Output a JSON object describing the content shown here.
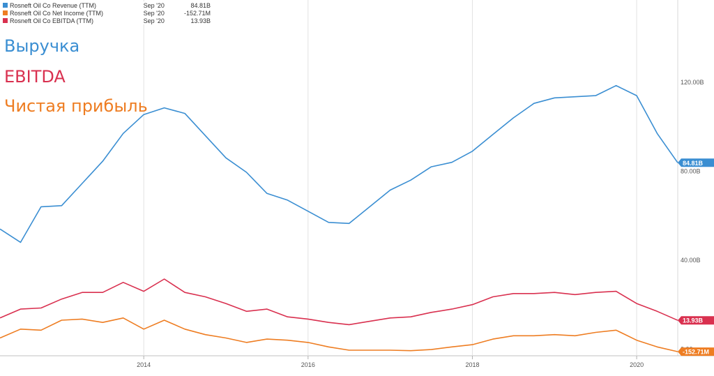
{
  "chart_data": {
    "type": "line",
    "x": [
      "2012-06",
      "2012-09",
      "2012-12",
      "2013-03",
      "2013-06",
      "2013-09",
      "2013-12",
      "2014-03",
      "2014-06",
      "2014-09",
      "2014-12",
      "2015-03",
      "2015-06",
      "2015-09",
      "2015-12",
      "2016-03",
      "2016-06",
      "2016-09",
      "2016-12",
      "2017-03",
      "2017-06",
      "2017-09",
      "2017-12",
      "2018-03",
      "2018-06",
      "2018-09",
      "2018-12",
      "2019-03",
      "2019-06",
      "2019-09",
      "2019-12",
      "2020-03",
      "2020-06",
      "2020-09"
    ],
    "series": [
      {
        "name": "Rosneft Oil Co Revenue (TTM)",
        "color": "#3a8ed2",
        "last_date": "Sep '20",
        "last_value_label": "84.81B",
        "values": [
          55.0,
          49.0,
          65.0,
          65.5,
          75.5,
          85.5,
          98.0,
          106.5,
          109.5,
          107.0,
          97.0,
          87.0,
          80.5,
          71.0,
          68.0,
          63.0,
          58.0,
          57.5,
          65.0,
          72.5,
          77.0,
          83.0,
          85.0,
          90.0,
          97.5,
          105.0,
          111.5,
          114.0,
          114.5,
          115.0,
          119.5,
          115.0,
          98.0,
          84.81
        ]
      },
      {
        "name": "Rosneft Oil Co Net Income (TTM)",
        "color": "#ee7d22",
        "last_date": "Sep '20",
        "last_value_label": "-152.71M",
        "values": [
          6.0,
          10.0,
          9.5,
          14.0,
          14.5,
          13.0,
          15.0,
          10.0,
          14.0,
          10.0,
          7.5,
          6.0,
          4.0,
          5.5,
          5.0,
          4.0,
          2.0,
          0.5,
          0.5,
          0.5,
          0.3,
          0.8,
          2.0,
          3.0,
          5.5,
          7.0,
          7.0,
          7.5,
          7.0,
          8.5,
          9.5,
          5.0,
          2.0,
          -0.15271
        ]
      },
      {
        "name": "Rosneft Oil Co EBITDA (TTM)",
        "color": "#d9304f",
        "last_date": "Sep '20",
        "last_value_label": "13.93B",
        "values": [
          15.0,
          19.0,
          19.5,
          23.5,
          26.5,
          26.5,
          31.0,
          27.0,
          32.5,
          26.5,
          24.5,
          21.5,
          18.0,
          19.0,
          15.5,
          14.5,
          13.0,
          12.0,
          13.5,
          15.0,
          15.5,
          17.5,
          19.0,
          21.0,
          24.5,
          26.0,
          26.0,
          26.5,
          25.5,
          26.5,
          27.0,
          21.5,
          18.0,
          13.93
        ]
      }
    ],
    "x_ticks": [
      {
        "label": "2014",
        "x": "2014-03"
      },
      {
        "label": "2016",
        "x": "2016-03"
      },
      {
        "label": "2018",
        "x": "2018-03"
      },
      {
        "label": "2020",
        "x": "2020-03"
      }
    ],
    "y_ticks": [
      {
        "label": "0.00",
        "value": 0
      },
      {
        "label": "40.00B",
        "value": 40
      },
      {
        "label": "80.00B",
        "value": 80
      },
      {
        "label": "120.00B",
        "value": 120
      }
    ],
    "ylim": [
      -2,
      158
    ],
    "grid": "vertical",
    "legend": "top-left",
    "annotations": [
      {
        "text": "Выручка",
        "color": "#3a8ed2"
      },
      {
        "text": "EBITDA",
        "color": "#d9304f"
      },
      {
        "text": "Чистая прибыль",
        "color": "#ee7d22"
      }
    ]
  }
}
